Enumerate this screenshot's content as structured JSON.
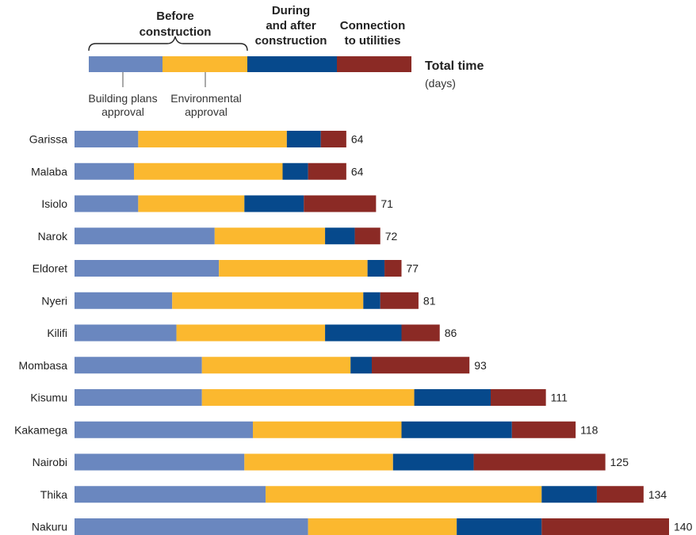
{
  "chart_data": {
    "type": "bar",
    "orientation": "horizontal",
    "stacked": true,
    "legend": {
      "position": "top",
      "groups": [
        {
          "line1": "Before",
          "line2": "construction"
        },
        {
          "line1": "During",
          "line2": "and after",
          "line3": "construction"
        },
        {
          "line1": "Connection",
          "line2": "to utilities"
        }
      ],
      "sublabels": [
        {
          "line1": "Building plans",
          "line2": "approval"
        },
        {
          "line1": "Environmental",
          "line2": "approval"
        }
      ],
      "total_title": "Total time",
      "total_unit": "(days)"
    },
    "series_colors": [
      "#6a87bf",
      "#fbb82f",
      "#06498c",
      "#8b2a25"
    ],
    "series": [
      {
        "name": "Building plans approval",
        "values": [
          15,
          14,
          15,
          33,
          34,
          23,
          24,
          30,
          30,
          42,
          40,
          45,
          55
        ]
      },
      {
        "name": "Environmental approval",
        "values": [
          35,
          35,
          25,
          26,
          35,
          45,
          35,
          35,
          50,
          35,
          35,
          65,
          35
        ]
      },
      {
        "name": "During and after construction",
        "values": [
          8,
          6,
          14,
          7,
          4,
          4,
          18,
          5,
          18,
          26,
          19,
          13,
          20
        ]
      },
      {
        "name": "Connection to utilities",
        "values": [
          6,
          9,
          17,
          6,
          4,
          9,
          9,
          23,
          13,
          15,
          31,
          11,
          30
        ]
      }
    ],
    "categories": [
      "Garissa",
      "Malaba",
      "Isiolo",
      "Narok",
      "Eldoret",
      "Nyeri",
      "Kilifi",
      "Mombasa",
      "Kisumu",
      "Kakamega",
      "Nairobi",
      "Thika",
      "Nakuru"
    ],
    "totals": [
      64,
      64,
      71,
      72,
      77,
      81,
      86,
      93,
      111,
      118,
      125,
      134,
      140
    ],
    "xlim": [
      0,
      140
    ]
  }
}
